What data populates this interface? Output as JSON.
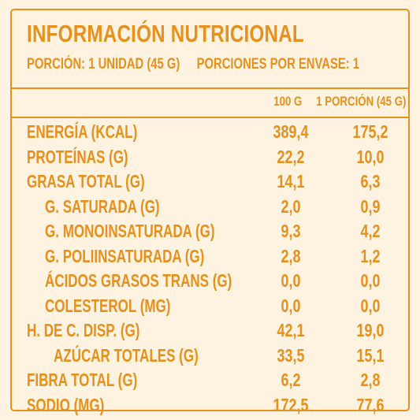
{
  "title": "INFORMACIÓN NUTRICIONAL",
  "serving": {
    "portion": "PORCIÓN: 1 UNIDAD (45 G)",
    "servings_per_container": "PORCIONES POR ENVASE: 1"
  },
  "columns": [
    "100 G",
    "1 PORCIÓN (45 G)"
  ],
  "rows": [
    {
      "label": "ENERGÍA (KCAL)",
      "per100": "389,4",
      "perPortion": "175,2",
      "indent": 0
    },
    {
      "label": "PROTEÍNAS (G)",
      "per100": "22,2",
      "perPortion": "10,0",
      "indent": 0
    },
    {
      "label": "GRASA TOTAL (G)",
      "per100": "14,1",
      "perPortion": "6,3",
      "indent": 0
    },
    {
      "label": "G. SATURADA (G)",
      "per100": "2,0",
      "perPortion": "0,9",
      "indent": 2
    },
    {
      "label": "G. MONOINSATURADA (G)",
      "per100": "9,3",
      "perPortion": "4,2",
      "indent": 2
    },
    {
      "label": "G. POLIINSATURADA (G)",
      "per100": "2,8",
      "perPortion": "1,2",
      "indent": 2
    },
    {
      "label": "ÁCIDOS GRASOS TRANS (G)",
      "per100": "0,0",
      "perPortion": "0,0",
      "indent": 2
    },
    {
      "label": "COLESTEROL (MG)",
      "per100": "0,0",
      "perPortion": "0,0",
      "indent": 2
    },
    {
      "label": "H. DE C. DISP. (G)",
      "per100": "42,1",
      "perPortion": "19,0",
      "indent": 0
    },
    {
      "label": "AZÚCAR TOTALES (G)",
      "per100": "33,5",
      "perPortion": "15,1",
      "indent": 1
    },
    {
      "label": "FIBRA TOTAL (G)",
      "per100": "6,2",
      "perPortion": "2,8",
      "indent": 0
    },
    {
      "label": "SODIO (MG)",
      "per100": "172,5",
      "perPortion": "77,6",
      "indent": 0
    }
  ],
  "colors": {
    "accent": "#e6901e",
    "background": "#fdf3e0"
  }
}
